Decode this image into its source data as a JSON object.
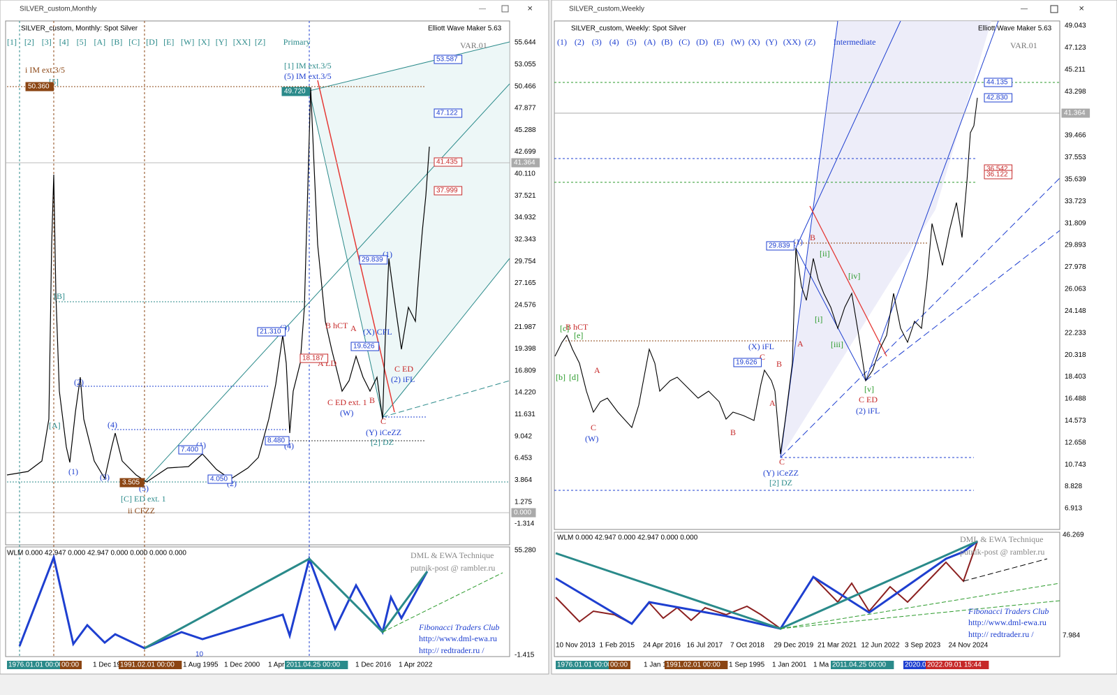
{
  "left": {
    "title": "SILVER_custom,Monthly",
    "header": "SILVER_custom, Monthly:  Spot Silver",
    "maker": "Elliott Wave Maker 5.63",
    "degree": "Primary",
    "buttons": [
      "[1]",
      "[2]",
      "[3]",
      "[4]",
      "[5]",
      "[A]",
      "[B]",
      "[C]",
      "[D]",
      "[E]",
      "[W]",
      "[X]",
      "[Y]",
      "[XX]",
      "[Z]"
    ],
    "var": "VAR.01",
    "price_axis": [
      "55.644",
      "53.055",
      "50.466",
      "47.877",
      "45.288",
      "42.699",
      "40.110",
      "37.521",
      "34.932",
      "32.343",
      "29.754",
      "27.165",
      "24.576",
      "21.987",
      "19.398",
      "16.809",
      "14.220",
      "11.631",
      "9.042",
      "6.453",
      "3.864",
      "1.275",
      "-1.314"
    ],
    "current_price": "41.364",
    "zero_label": "0.000",
    "annotations": [
      "i IM ext.3/5",
      "[1] IM ext.3/5",
      "(5) IM ext.3/5",
      "[5]",
      "[B]",
      "[A]",
      "(2)",
      "(1)",
      "(3)",
      "(4)",
      "(5)",
      "[C] ED ext. 1",
      "ii CFZZ",
      "(1)",
      "(2)",
      "(3)",
      "(4)",
      "B hCT",
      "A",
      "(X) CFL",
      "A LD",
      "C ED ext. 1",
      "(W)",
      "B",
      "C",
      "(Y) iCeZZ",
      "[2] DZ",
      "C ED",
      "(2) iFL",
      "(1)"
    ],
    "boxes": [
      "50.360",
      "49.720",
      "53.587",
      "47.122",
      "41.435",
      "37.999",
      "29.839",
      "21.310",
      "19.626",
      "18.187",
      "8.480",
      "7.400",
      "4.050",
      "3.505"
    ],
    "indicator": {
      "header": "WLM 0.000 42.947 0.000 42.947 0.000 0.000 0.000 0.000",
      "axis": [
        "55.280",
        "-1.415"
      ],
      "notes": [
        "DML & EWA Technique",
        "putnik-post @ rambler.ru",
        "Fibonacci   Traders   Club",
        "http://www.dml-ewa.ru",
        "http://   redtrader.ru   /"
      ],
      "tick": "10"
    },
    "time_axis": [
      "1976.01.01 00:00",
      "00:00",
      "1 Dec 19",
      "1991.02.01 00:00",
      "1 Aug 1995",
      "1 Dec 2000",
      "1 Apr",
      "2011.04.25 00:00",
      "1 Dec 2016",
      "1 Apr 2022"
    ]
  },
  "right": {
    "title": "SILVER_custom,Weekly",
    "header": "SILVER_custom, Weekly:  Spot Silver",
    "maker": "Elliott Wave Maker 5.63",
    "degree": "Intermediate",
    "buttons": [
      "(1)",
      "(2)",
      "(3)",
      "(4)",
      "(5)",
      "(A)",
      "(B)",
      "(C)",
      "(D)",
      "(E)",
      "(W)",
      "(X)",
      "(Y)",
      "(XX)",
      "(Z)"
    ],
    "var": "VAR.01",
    "price_axis": [
      "49.043",
      "47.123",
      "45.211",
      "43.298",
      "39.466",
      "37.553",
      "35.639",
      "33.723",
      "31.809",
      "29.893",
      "27.978",
      "26.063",
      "24.148",
      "22.233",
      "20.318",
      "18.403",
      "16.488",
      "14.573",
      "12.658",
      "10.743",
      "8.828",
      "6.913"
    ],
    "current_price": "41.364",
    "annotations": [
      "B hCT",
      "[c]",
      "[e]",
      "[b]",
      "[d]",
      "A",
      "C",
      "(W)",
      "B",
      "(X) iFL",
      "C",
      "B",
      "A",
      "C",
      "(Y) iCeZZ",
      "[2] DZ",
      "(1)",
      "B",
      "A",
      "[ii]",
      "[i]",
      "[iii]",
      "[iv]",
      "[v]",
      "C ED",
      "(2) iFL"
    ],
    "boxes": [
      "44.135",
      "42.830",
      "36.542",
      "36.122",
      "29.839",
      "19.626"
    ],
    "indicator": {
      "header": "WLM 0.000 42.947 0.000 42.947 0.000 0.000",
      "axis": [
        "46.269",
        "7.984"
      ],
      "notes": [
        "DML & EWA Technique",
        "putnik-post @ rambler.ru",
        "Fibonacci   Traders   Club",
        "http://www.dml-ewa.ru",
        "http://   redtrader.ru   /"
      ],
      "dates": [
        "10 Nov 2013",
        "1 Feb 2015",
        "24 Apr 2016",
        "16 Jul 2017",
        "7 Oct 2018",
        "29 Dec 2019",
        "21 Mar 2021",
        "12 Jun 2022",
        "3 Sep 2023",
        "24 Nov 2024"
      ]
    },
    "time_axis": [
      "1976.01.01 00:00",
      "00:00",
      "1 Jan 19",
      "1991.02.01 00:00",
      "1 Sep 1995",
      "1 Jan 2001",
      "1 Ma",
      "2011.04.25 00:00",
      "2020.0",
      "2022.09.01 15:44"
    ]
  }
}
